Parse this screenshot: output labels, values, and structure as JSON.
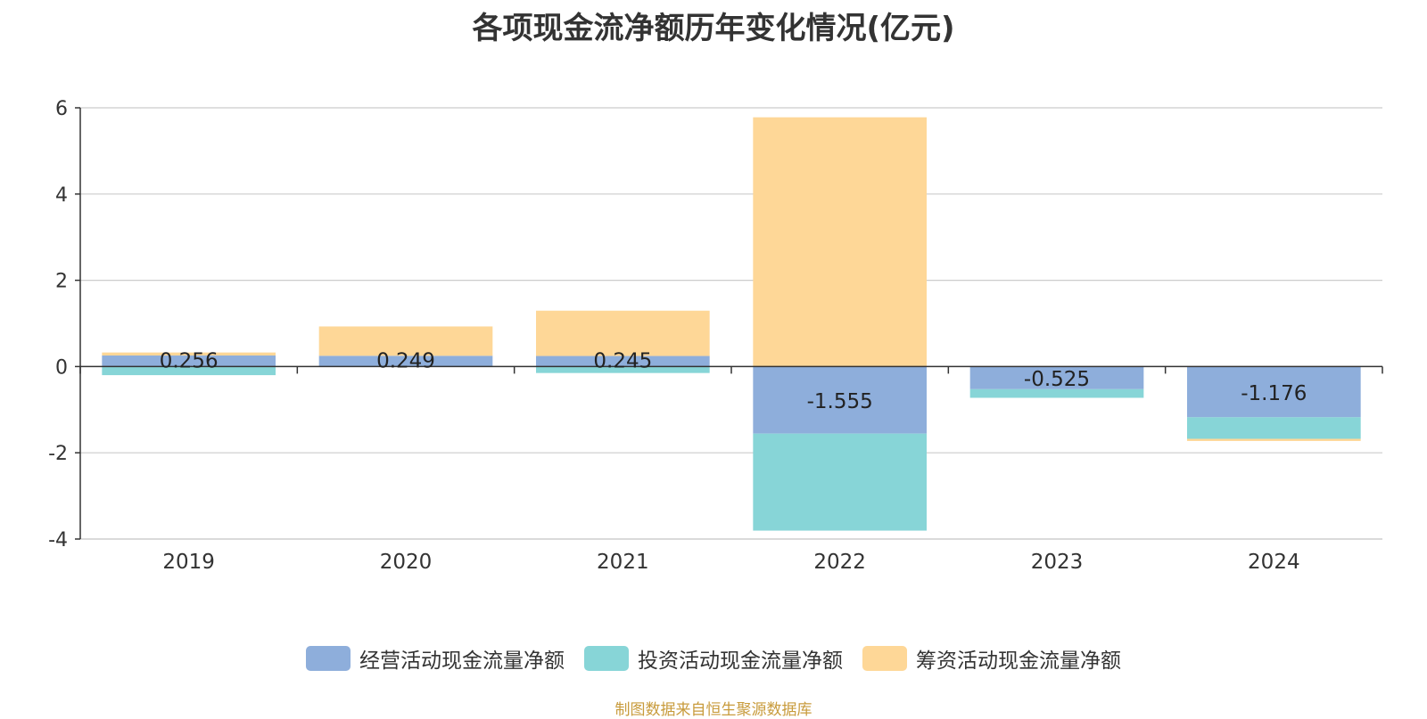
{
  "chart_data": {
    "type": "bar",
    "stacked": true,
    "title": "各项现金流净额历年变化情况(亿元)",
    "categories": [
      "2019",
      "2020",
      "2021",
      "2022",
      "2023",
      "2024"
    ],
    "series": [
      {
        "name": "经营活动现金流量净额",
        "color": "#8eaedb",
        "values": [
          0.256,
          0.249,
          0.245,
          -1.555,
          -0.525,
          -1.176
        ]
      },
      {
        "name": "投资活动现金流量净额",
        "color": "#87d5d7",
        "values": [
          -0.2,
          0.0,
          -0.15,
          -2.25,
          -0.2,
          -0.5
        ]
      },
      {
        "name": "筹资活动现金流量净额",
        "color": "#fed797",
        "values": [
          0.07,
          0.68,
          1.05,
          5.78,
          0.0,
          -0.05
        ]
      }
    ],
    "data_labels": [
      "0.256",
      "0.249",
      "0.245",
      "-1.555",
      "-0.525",
      "-1.176"
    ],
    "yticks": [
      "6",
      "4",
      "2",
      "0",
      "-2",
      "-4"
    ],
    "ylim": [
      -4,
      6
    ],
    "grid": true,
    "legend_position": "bottom"
  },
  "source_note": "制图数据来自恒生聚源数据库"
}
